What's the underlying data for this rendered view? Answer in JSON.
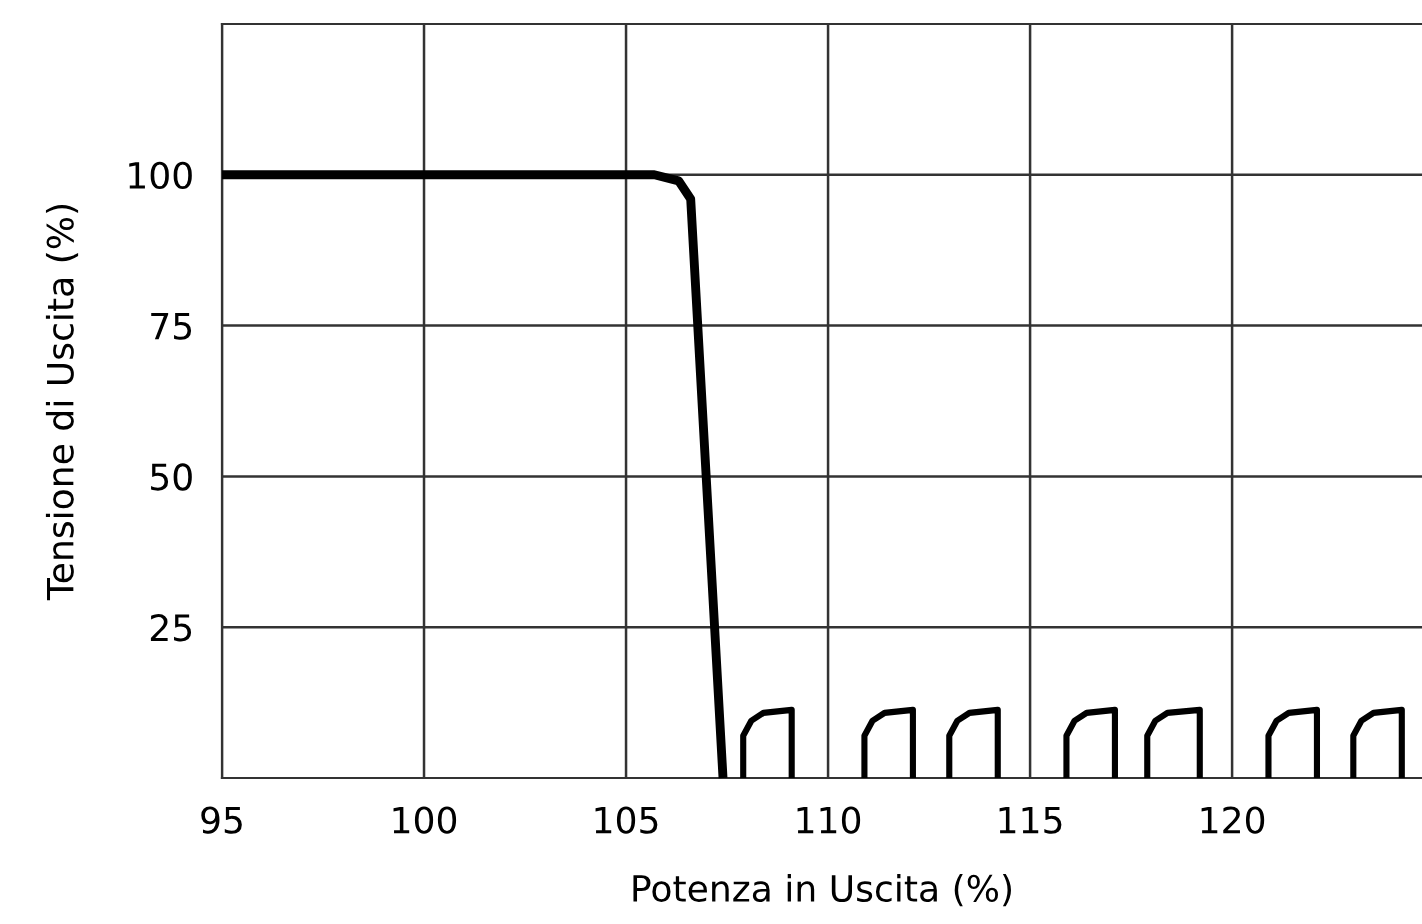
{
  "chart_data": {
    "type": "line",
    "xlabel": "Potenza in Uscita (%)",
    "ylabel": "Tensione di Uscita (%)",
    "xlim": [
      95,
      124.7
    ],
    "ylim": [
      0,
      125
    ],
    "xticks": [
      95,
      100,
      105,
      110,
      115,
      120
    ],
    "yticks": [
      25,
      50,
      75,
      100
    ],
    "grid": true,
    "series": [
      {
        "color": "#000000",
        "x": [
          95,
          105.7,
          106.3,
          106.6,
          107.4
        ],
        "values": [
          100,
          100,
          99,
          96,
          0
        ]
      },
      {
        "color": "#000000",
        "x": [
          107.9,
          107.9,
          108.1,
          108.4,
          109.1,
          109.1
        ],
        "values": [
          0,
          7,
          9.5,
          10.8,
          11.3,
          0
        ]
      },
      {
        "color": "#000000",
        "x": [
          110.9,
          110.9,
          111.1,
          111.4,
          112.1,
          112.1
        ],
        "values": [
          0,
          7,
          9.5,
          10.8,
          11.3,
          0
        ]
      },
      {
        "color": "#000000",
        "x": [
          113.0,
          113.0,
          113.2,
          113.5,
          114.2,
          114.2
        ],
        "values": [
          0,
          7,
          9.5,
          10.8,
          11.3,
          0
        ]
      },
      {
        "color": "#000000",
        "x": [
          115.9,
          115.9,
          116.1,
          116.4,
          117.1,
          117.1
        ],
        "values": [
          0,
          7,
          9.5,
          10.8,
          11.3,
          0
        ]
      },
      {
        "color": "#000000",
        "x": [
          117.9,
          117.9,
          118.1,
          118.4,
          119.2,
          119.2
        ],
        "values": [
          0,
          7,
          9.5,
          10.8,
          11.3,
          0
        ]
      },
      {
        "color": "#000000",
        "x": [
          120.9,
          120.9,
          121.1,
          121.4,
          122.1,
          122.1
        ],
        "values": [
          0,
          7,
          9.5,
          10.8,
          11.3,
          0
        ]
      },
      {
        "color": "#000000",
        "x": [
          123.0,
          123.0,
          123.2,
          123.5,
          124.2,
          124.2
        ],
        "values": [
          0,
          7,
          9.5,
          10.8,
          11.3,
          0
        ]
      }
    ]
  }
}
